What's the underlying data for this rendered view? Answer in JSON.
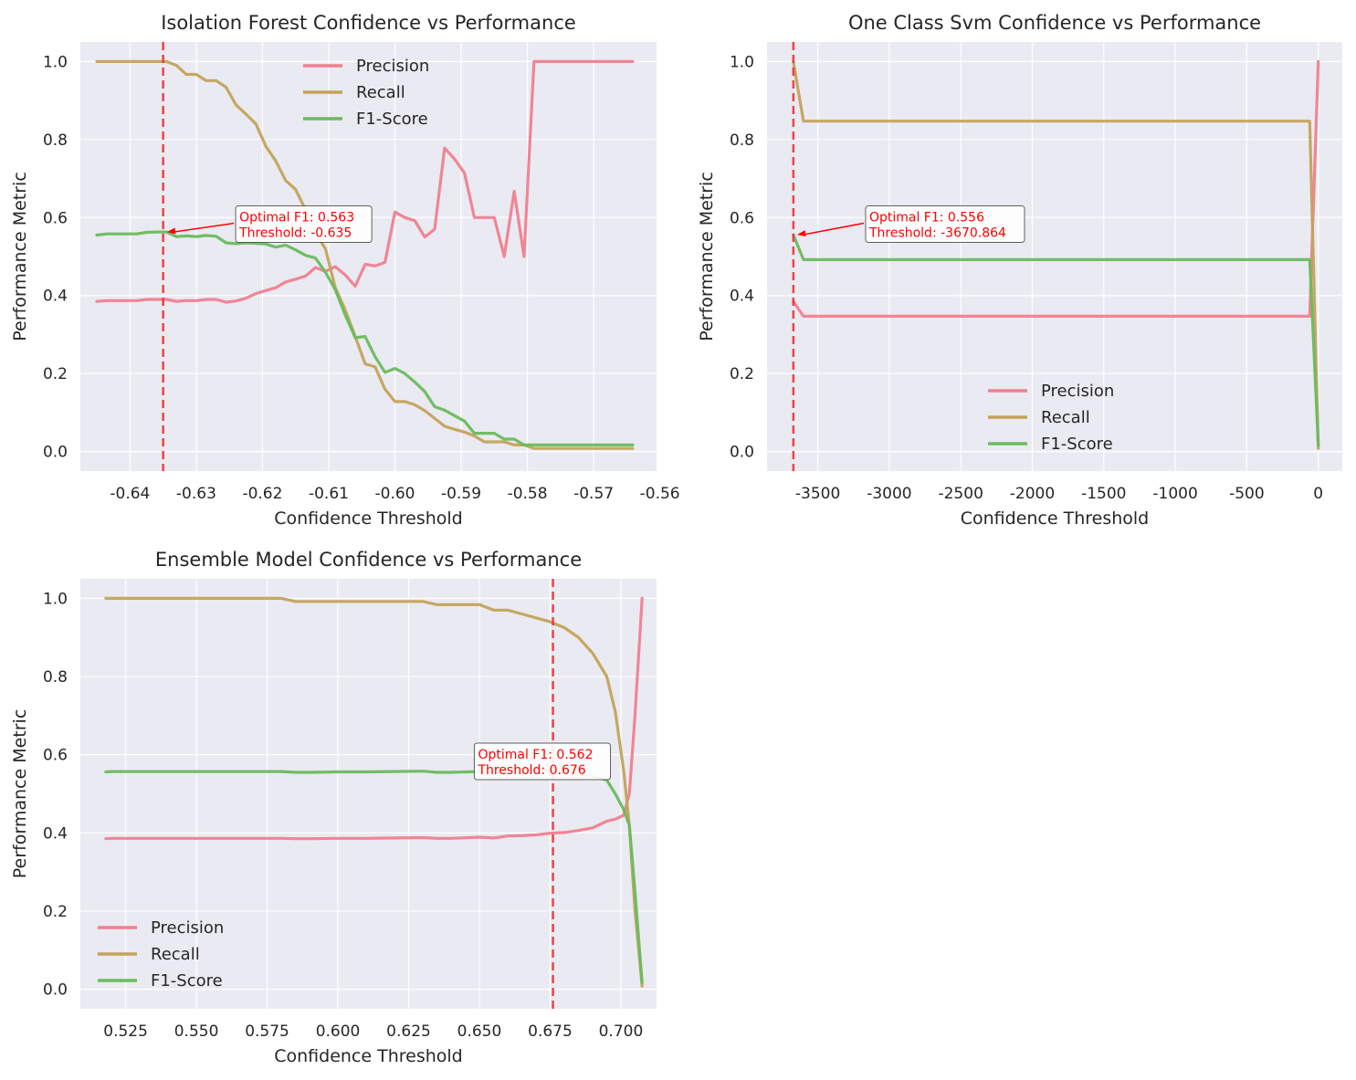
{
  "chart_data": [
    {
      "type": "line",
      "title": "Isolation Forest Confidence vs Performance",
      "xlabel": "Confidence Threshold",
      "ylabel": "Performance Metric",
      "xlim": [
        -0.6475,
        -0.5605
      ],
      "ylim": [
        -0.05,
        1.05
      ],
      "xticks": [
        -0.64,
        -0.63,
        -0.62,
        -0.61,
        -0.6,
        -0.59,
        -0.58,
        -0.57,
        -0.56
      ],
      "xtick_labels": [
        "-0.64",
        "-0.63",
        "-0.62",
        "-0.61",
        "-0.60",
        "-0.59",
        "-0.58",
        "-0.57",
        "-0.56"
      ],
      "yticks": [
        0.0,
        0.2,
        0.4,
        0.6,
        0.8,
        1.0
      ],
      "ytick_labels": [
        "0.0",
        "0.2",
        "0.4",
        "0.6",
        "0.8",
        "1.0"
      ],
      "grid": true,
      "legend": "upper center",
      "x": [
        -0.645,
        -0.6435,
        -0.642,
        -0.6405,
        -0.639,
        -0.6375,
        -0.636,
        -0.6345,
        -0.633,
        -0.6315,
        -0.63,
        -0.6285,
        -0.627,
        -0.6255,
        -0.624,
        -0.6225,
        -0.621,
        -0.6195,
        -0.618,
        -0.6165,
        -0.615,
        -0.6135,
        -0.612,
        -0.6105,
        -0.609,
        -0.6075,
        -0.606,
        -0.6045,
        -0.603,
        -0.6015,
        -0.6,
        -0.5985,
        -0.597,
        -0.5955,
        -0.594,
        -0.5925,
        -0.591,
        -0.5895,
        -0.588,
        -0.5865,
        -0.585,
        -0.5835,
        -0.582,
        -0.5805,
        -0.579,
        -0.5775,
        -0.576,
        -0.5745,
        -0.573,
        -0.5715,
        -0.57,
        -0.5685,
        -0.567,
        -0.5655,
        -0.5641
      ],
      "series": [
        {
          "name": "Precision",
          "color": "#f0808f",
          "values": [
            0.385,
            0.387,
            0.387,
            0.387,
            0.387,
            0.39,
            0.39,
            0.39,
            0.385,
            0.387,
            0.387,
            0.39,
            0.39,
            0.383,
            0.386,
            0.393,
            0.405,
            0.413,
            0.42,
            0.435,
            0.442,
            0.45,
            0.472,
            0.462,
            0.474,
            0.453,
            0.424,
            0.48,
            0.476,
            0.485,
            0.614,
            0.6,
            0.592,
            0.55,
            0.57,
            0.778,
            0.75,
            0.714,
            0.6,
            0.6,
            0.6,
            0.5,
            0.667,
            0.5,
            1.0,
            1.0,
            1.0,
            1.0,
            1.0,
            1.0,
            1.0,
            1.0,
            1.0,
            1.0,
            1.0
          ]
        },
        {
          "name": "Recall",
          "color": "#c4a35a",
          "values": [
            1.0,
            1.0,
            1.0,
            1.0,
            1.0,
            1.0,
            1.0,
            1.0,
            0.99,
            0.967,
            0.967,
            0.951,
            0.951,
            0.934,
            0.889,
            0.865,
            0.84,
            0.783,
            0.745,
            0.695,
            0.672,
            0.62,
            0.56,
            0.52,
            0.42,
            0.363,
            0.295,
            0.225,
            0.217,
            0.16,
            0.128,
            0.128,
            0.12,
            0.105,
            0.085,
            0.065,
            0.057,
            0.05,
            0.04,
            0.025,
            0.025,
            0.025,
            0.017,
            0.017,
            0.008,
            0.008,
            0.008,
            0.008,
            0.008,
            0.008,
            0.008,
            0.008,
            0.008,
            0.008,
            0.008
          ]
        },
        {
          "name": "F1-Score",
          "color": "#6abb5c",
          "values": [
            0.555,
            0.558,
            0.558,
            0.558,
            0.558,
            0.562,
            0.563,
            0.563,
            0.551,
            0.553,
            0.551,
            0.554,
            0.552,
            0.535,
            0.533,
            0.535,
            0.534,
            0.532,
            0.524,
            0.529,
            0.517,
            0.503,
            0.496,
            0.46,
            0.415,
            0.35,
            0.292,
            0.295,
            0.243,
            0.203,
            0.213,
            0.2,
            0.178,
            0.154,
            0.115,
            0.106,
            0.092,
            0.078,
            0.047,
            0.047,
            0.047,
            0.032,
            0.032,
            0.017,
            0.017,
            0.017,
            0.017,
            0.017,
            0.017,
            0.017,
            0.017,
            0.017,
            0.017,
            0.017,
            0.017
          ]
        }
      ],
      "optimal_threshold": -0.635,
      "annotation": {
        "lines": [
          "Optimal F1: 0.563",
          "Threshold: -0.635"
        ],
        "point": [
          -0.635,
          0.563
        ],
        "text_anchor": [
          -0.6235,
          0.59
        ]
      }
    },
    {
      "type": "line",
      "title": "One Class Svm Confidence vs Performance",
      "xlabel": "Confidence Threshold",
      "ylabel": "Performance Metric",
      "xlim": [
        -3855,
        168
      ],
      "ylim": [
        -0.05,
        1.05
      ],
      "xticks": [
        -3500,
        -3000,
        -2500,
        -2000,
        -1500,
        -1000,
        -500,
        0
      ],
      "xtick_labels": [
        "-3500",
        "-3000",
        "-2500",
        "-2000",
        "-1500",
        "-1000",
        "-500",
        "0"
      ],
      "yticks": [
        0.0,
        0.2,
        0.4,
        0.6,
        0.8,
        1.0
      ],
      "ytick_labels": [
        "0.0",
        "0.2",
        "0.4",
        "0.6",
        "0.8",
        "1.0"
      ],
      "grid": true,
      "legend": "lower center",
      "x": [
        -3670.864,
        -3600,
        -3500,
        -3000,
        -2500,
        -2000,
        -1500,
        -1000,
        -500,
        -80,
        -60,
        0
      ],
      "series": [
        {
          "name": "Precision",
          "color": "#f0808f",
          "values": [
            0.385,
            0.347,
            0.347,
            0.347,
            0.347,
            0.347,
            0.347,
            0.347,
            0.347,
            0.347,
            0.347,
            1.0
          ]
        },
        {
          "name": "Recall",
          "color": "#c4a35a",
          "values": [
            1.0,
            0.847,
            0.847,
            0.847,
            0.847,
            0.847,
            0.847,
            0.847,
            0.847,
            0.847,
            0.847,
            0.008
          ]
        },
        {
          "name": "F1-Score",
          "color": "#6abb5c",
          "values": [
            0.556,
            0.492,
            0.492,
            0.492,
            0.492,
            0.492,
            0.492,
            0.492,
            0.492,
            0.492,
            0.492,
            0.016
          ]
        }
      ],
      "optimal_threshold": -3670.864,
      "annotation": {
        "lines": [
          "Optimal F1: 0.556",
          "Threshold: -3670.864"
        ],
        "point": [
          -3670.864,
          0.556
        ],
        "text_anchor": [
          -3140,
          0.59
        ]
      }
    },
    {
      "type": "line",
      "title": "Ensemble Model Confidence vs Performance",
      "xlabel": "Confidence Threshold",
      "ylabel": "Performance Metric",
      "xlim": [
        0.509,
        0.7126
      ],
      "ylim": [
        -0.05,
        1.05
      ],
      "xticks": [
        0.525,
        0.55,
        0.575,
        0.6,
        0.625,
        0.65,
        0.675,
        0.7
      ],
      "xtick_labels": [
        "0.525",
        "0.550",
        "0.575",
        "0.600",
        "0.625",
        "0.650",
        "0.675",
        "0.700"
      ],
      "yticks": [
        0.0,
        0.2,
        0.4,
        0.6,
        0.8,
        1.0
      ],
      "ytick_labels": [
        "0.0",
        "0.2",
        "0.4",
        "0.6",
        "0.8",
        "1.0"
      ],
      "grid": true,
      "legend": "lower left",
      "x": [
        0.518,
        0.52,
        0.53,
        0.54,
        0.55,
        0.56,
        0.57,
        0.575,
        0.58,
        0.585,
        0.59,
        0.6,
        0.61,
        0.62,
        0.63,
        0.635,
        0.64,
        0.65,
        0.655,
        0.66,
        0.665,
        0.67,
        0.675,
        0.68,
        0.685,
        0.69,
        0.695,
        0.698,
        0.701,
        0.703,
        0.705,
        0.7075
      ],
      "series": [
        {
          "name": "Precision",
          "color": "#f0808f",
          "values": [
            0.385,
            0.386,
            0.386,
            0.386,
            0.386,
            0.386,
            0.386,
            0.386,
            0.386,
            0.385,
            0.385,
            0.386,
            0.386,
            0.387,
            0.388,
            0.386,
            0.386,
            0.389,
            0.387,
            0.392,
            0.393,
            0.395,
            0.399,
            0.401,
            0.406,
            0.413,
            0.43,
            0.435,
            0.445,
            0.5,
            0.7,
            1.0
          ]
        },
        {
          "name": "Recall",
          "color": "#c4a35a",
          "values": [
            1.0,
            1.0,
            1.0,
            1.0,
            1.0,
            1.0,
            1.0,
            1.0,
            1.0,
            0.992,
            0.992,
            0.992,
            0.992,
            0.992,
            0.992,
            0.984,
            0.984,
            0.984,
            0.97,
            0.97,
            0.96,
            0.95,
            0.94,
            0.925,
            0.9,
            0.86,
            0.8,
            0.71,
            0.56,
            0.42,
            0.2,
            0.008
          ]
        },
        {
          "name": "F1-Score",
          "color": "#6abb5c",
          "values": [
            0.556,
            0.557,
            0.557,
            0.557,
            0.557,
            0.557,
            0.557,
            0.557,
            0.557,
            0.555,
            0.555,
            0.556,
            0.556,
            0.557,
            0.558,
            0.555,
            0.555,
            0.557,
            0.557,
            0.561,
            0.562,
            0.562,
            0.562,
            0.555,
            0.55,
            0.545,
            0.535,
            0.5,
            0.46,
            0.42,
            0.25,
            0.016
          ]
        }
      ],
      "optimal_threshold": 0.676,
      "annotation": {
        "lines": [
          "Optimal F1: 0.562",
          "Threshold: 0.676"
        ],
        "point": [
          0.676,
          0.562
        ],
        "text_anchor": [
          0.6495,
          0.59
        ]
      }
    }
  ]
}
